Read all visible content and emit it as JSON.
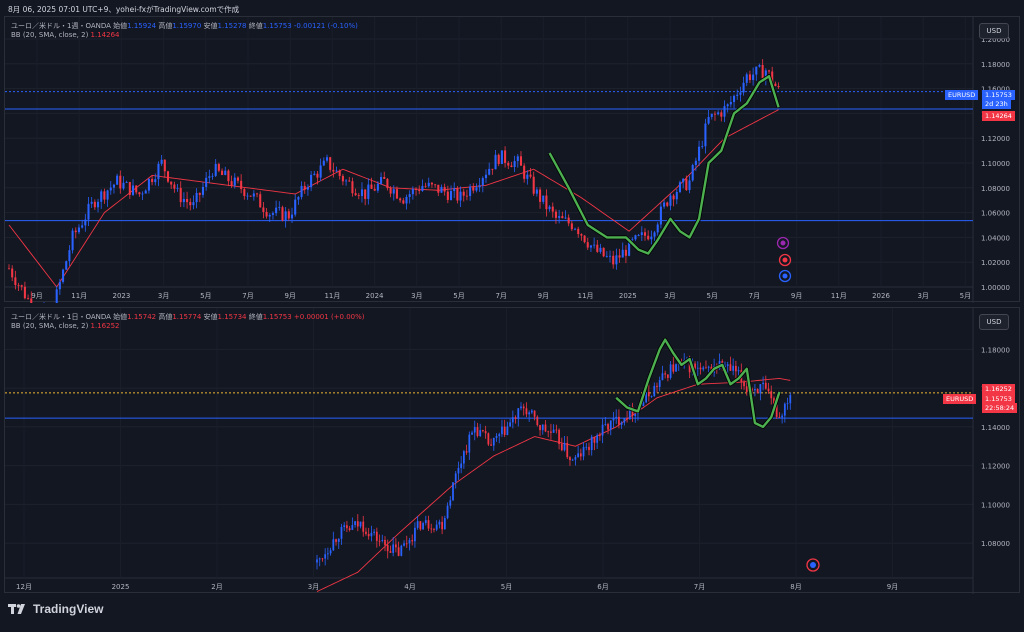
{
  "caption": "8月 06, 2025 07:01 UTC+9、yohei-fxがTradingView.comで作成",
  "footer": {
    "logo_text": "TradingView"
  },
  "panes": [
    {
      "legend": {
        "title": "ユーロ／米ドル・1週・OANDA",
        "open_label": "始値",
        "open": "1.15924",
        "high_label": "高値",
        "high": "1.15970",
        "low_label": "安値",
        "low": "1.15278",
        "close_label": "終値",
        "close": "1.15753",
        "change": "-0.00121 (-0.10%)",
        "indicator": "BB (20, SMA, close, 2)",
        "indicator_value": "1.14264"
      },
      "unit": "USD",
      "symbol_tag": "EURUSD",
      "last_price": "1.15753",
      "countdown": "2d 23h",
      "bb_tag": "1.14264"
    },
    {
      "legend": {
        "title": "ユーロ／米ドル・1日・OANDA",
        "open_label": "始値",
        "open": "1.15742",
        "high_label": "高値",
        "high": "1.15774",
        "low_label": "安値",
        "low": "1.15734",
        "close_label": "終値",
        "close": "1.15753",
        "change": "+0.00001 (+0.00%)",
        "indicator": "BB (20, SMA, close, 2)",
        "indicator_value": "1.16252"
      },
      "unit": "USD",
      "symbol_tag": "EURUSD",
      "last_price": "1.15753",
      "countdown": "22:58:24",
      "bb_tag": "1.16252"
    }
  ],
  "chart_data": [
    {
      "type": "candlestick",
      "timeframe": "weekly",
      "x_tick_labels": [
        "9月",
        "11月",
        "2023",
        "3月",
        "5月",
        "7月",
        "9月",
        "11月",
        "2024",
        "3月",
        "5月",
        "7月",
        "9月",
        "11月",
        "2025",
        "3月",
        "5月",
        "7月",
        "9月",
        "11月",
        "2026",
        "3月",
        "5月"
      ],
      "y_tick_labels": [
        "1.00000",
        "1.02000",
        "1.04000",
        "1.06000",
        "1.08000",
        "1.10000",
        "1.12000",
        "1.14000",
        "1.16000",
        "1.18000",
        "1.20000"
      ],
      "ylim": [
        1.0,
        1.2
      ],
      "horizontal_lines": [
        1.0535,
        1.1435
      ],
      "last_price": 1.15753,
      "bb_middle": 1.14264,
      "close_anchors": [
        [
          0,
          1.015
        ],
        [
          6,
          0.99
        ],
        [
          13,
          0.975
        ],
        [
          20,
          1.04
        ],
        [
          27,
          1.07
        ],
        [
          34,
          1.085
        ],
        [
          41,
          1.075
        ],
        [
          48,
          1.1
        ],
        [
          53,
          1.075
        ],
        [
          58,
          1.065
        ],
        [
          64,
          1.095
        ],
        [
          70,
          1.085
        ],
        [
          76,
          1.075
        ],
        [
          82,
          1.06
        ],
        [
          88,
          1.058
        ],
        [
          94,
          1.085
        ],
        [
          100,
          1.1
        ],
        [
          106,
          1.085
        ],
        [
          112,
          1.075
        ],
        [
          118,
          1.085
        ],
        [
          124,
          1.072
        ],
        [
          130,
          1.082
        ],
        [
          136,
          1.078
        ],
        [
          142,
          1.072
        ],
        [
          148,
          1.088
        ],
        [
          154,
          1.105
        ],
        [
          160,
          1.1
        ],
        [
          166,
          1.075
        ],
        [
          172,
          1.055
        ],
        [
          178,
          1.05
        ],
        [
          184,
          1.03
        ],
        [
          190,
          1.02
        ],
        [
          196,
          1.035
        ],
        [
          202,
          1.045
        ],
        [
          208,
          1.075
        ],
        [
          214,
          1.085
        ],
        [
          220,
          1.135
        ],
        [
          226,
          1.145
        ],
        [
          232,
          1.17
        ],
        [
          238,
          1.175
        ],
        [
          242,
          1.158
        ]
      ],
      "bb_anchors": [
        [
          0,
          1.05
        ],
        [
          15,
          1.0
        ],
        [
          30,
          1.06
        ],
        [
          45,
          1.09
        ],
        [
          60,
          1.085
        ],
        [
          75,
          1.08
        ],
        [
          90,
          1.075
        ],
        [
          105,
          1.095
        ],
        [
          120,
          1.08
        ],
        [
          135,
          1.078
        ],
        [
          150,
          1.082
        ],
        [
          165,
          1.095
        ],
        [
          180,
          1.072
        ],
        [
          195,
          1.045
        ],
        [
          210,
          1.08
        ],
        [
          225,
          1.12
        ],
        [
          242,
          1.143
        ]
      ],
      "green_swing": [
        [
          170,
          1.108
        ],
        [
          176,
          1.08
        ],
        [
          182,
          1.05
        ],
        [
          188,
          1.04
        ],
        [
          194,
          1.04
        ],
        [
          198,
          1.03
        ],
        [
          201,
          1.027
        ],
        [
          204,
          1.038
        ],
        [
          208,
          1.055
        ],
        [
          211,
          1.045
        ],
        [
          214,
          1.04
        ],
        [
          217,
          1.055
        ],
        [
          220,
          1.1
        ],
        [
          224,
          1.11
        ],
        [
          228,
          1.14
        ],
        [
          232,
          1.148
        ],
        [
          236,
          1.165
        ],
        [
          239,
          1.17
        ],
        [
          242,
          1.145
        ]
      ]
    },
    {
      "type": "candlestick",
      "timeframe": "daily",
      "x_tick_labels": [
        "12月",
        "2025",
        "2月",
        "3月",
        "4月",
        "5月",
        "6月",
        "7月",
        "8月",
        "9月"
      ],
      "y_tick_labels": [
        "1.08000",
        "1.10000",
        "1.12000",
        "1.14000",
        "1.16000",
        "1.18000"
      ],
      "ylim": [
        1.062,
        1.19
      ],
      "horizontal_lines": [
        1.1445
      ],
      "last_price": 1.15753,
      "bb_middle": 1.16252,
      "close_anchors": [
        [
          0,
          1.07
        ],
        [
          8,
          1.085
        ],
        [
          16,
          1.09
        ],
        [
          24,
          1.08
        ],
        [
          30,
          1.075
        ],
        [
          38,
          1.09
        ],
        [
          46,
          1.09
        ],
        [
          52,
          1.12
        ],
        [
          58,
          1.14
        ],
        [
          64,
          1.13
        ],
        [
          70,
          1.14
        ],
        [
          76,
          1.15
        ],
        [
          82,
          1.14
        ],
        [
          88,
          1.135
        ],
        [
          94,
          1.122
        ],
        [
          100,
          1.13
        ],
        [
          106,
          1.14
        ],
        [
          112,
          1.145
        ],
        [
          118,
          1.15
        ],
        [
          124,
          1.16
        ],
        [
          130,
          1.17
        ],
        [
          136,
          1.172
        ],
        [
          142,
          1.168
        ],
        [
          148,
          1.172
        ],
        [
          154,
          1.168
        ],
        [
          158,
          1.16
        ],
        [
          164,
          1.16
        ],
        [
          170,
          1.145
        ],
        [
          174,
          1.158
        ]
      ],
      "bb_anchors": [
        [
          0,
          1.055
        ],
        [
          15,
          1.065
        ],
        [
          30,
          1.085
        ],
        [
          50,
          1.11
        ],
        [
          65,
          1.125
        ],
        [
          80,
          1.135
        ],
        [
          95,
          1.13
        ],
        [
          110,
          1.14
        ],
        [
          125,
          1.155
        ],
        [
          140,
          1.162
        ],
        [
          155,
          1.163
        ],
        [
          170,
          1.165
        ],
        [
          178,
          1.163
        ]
      ],
      "green_swing": [
        [
          110,
          1.155
        ],
        [
          114,
          1.15
        ],
        [
          118,
          1.148
        ],
        [
          122,
          1.165
        ],
        [
          126,
          1.18
        ],
        [
          128,
          1.185
        ],
        [
          131,
          1.178
        ],
        [
          134,
          1.172
        ],
        [
          137,
          1.175
        ],
        [
          140,
          1.162
        ],
        [
          143,
          1.165
        ],
        [
          146,
          1.17
        ],
        [
          149,
          1.172
        ],
        [
          152,
          1.162
        ],
        [
          155,
          1.165
        ],
        [
          158,
          1.17
        ],
        [
          161,
          1.142
        ],
        [
          164,
          1.14
        ],
        [
          167,
          1.145
        ],
        [
          170,
          1.158
        ]
      ]
    }
  ]
}
